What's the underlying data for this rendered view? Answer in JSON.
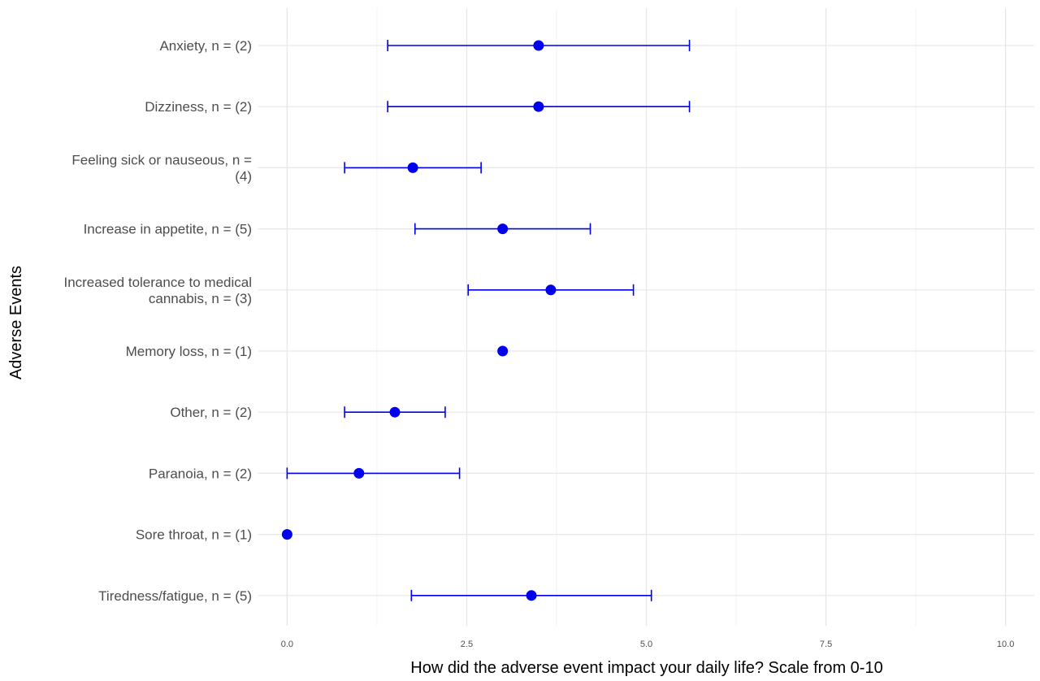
{
  "chart_data": {
    "type": "scatter",
    "orientation": "horizontal",
    "xlabel": "How did the adverse event impact your daily life? Scale from 0-10",
    "ylabel": "Adverse Events",
    "xlim": [
      -0.4,
      10.4
    ],
    "x_ticks": [
      0,
      2.5,
      5,
      7.5,
      10
    ],
    "x_tick_labels": [
      "0.0",
      "2.5",
      "5.0",
      "7.5",
      "10.0"
    ],
    "grid": true,
    "point_color": "#0000ee",
    "categories": [
      [
        "Anxiety, n = (2)"
      ],
      [
        "Dizziness, n = (2)"
      ],
      [
        "Feeling sick or nauseous, n =",
        "(4)"
      ],
      [
        "Increase in appetite, n = (5)"
      ],
      [
        "Increased tolerance to medical",
        "cannabis, n = (3)"
      ],
      [
        "Memory loss, n = (1)"
      ],
      [
        "Other, n = (2)"
      ],
      [
        "Paranoia, n = (2)"
      ],
      [
        "Sore throat, n = (1)"
      ],
      [
        "Tiredness/fatigue, n = (5)"
      ]
    ],
    "means": [
      3.5,
      3.5,
      1.75,
      3.0,
      3.67,
      3.0,
      1.5,
      1.0,
      0.0,
      3.4
    ],
    "lower": [
      1.4,
      1.4,
      0.8,
      1.78,
      2.52,
      null,
      0.8,
      0.0,
      null,
      1.73
    ],
    "upper": [
      5.6,
      5.6,
      2.7,
      4.22,
      4.82,
      null,
      2.2,
      2.4,
      null,
      5.07
    ]
  }
}
